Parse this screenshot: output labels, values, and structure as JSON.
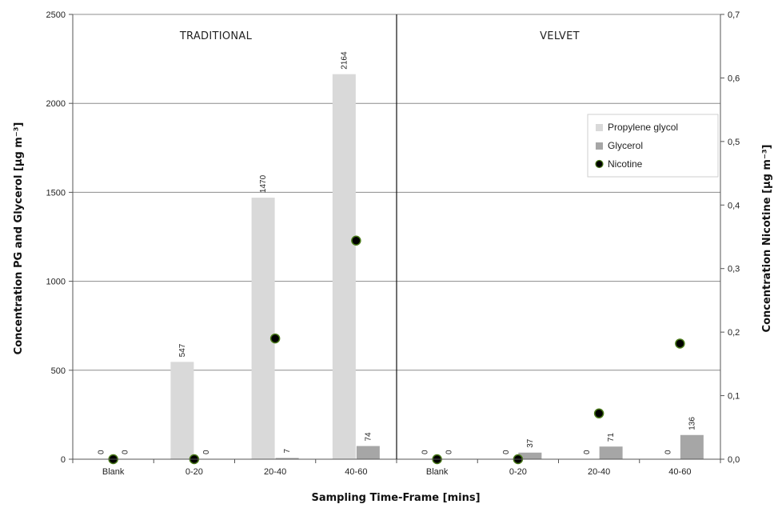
{
  "chart_data": {
    "type": "bar",
    "panels": [
      {
        "title": "TRADITIONAL",
        "categories": [
          "Blank",
          "0-20",
          "20-40",
          "40-60"
        ]
      },
      {
        "title": "VELVET",
        "categories": [
          "Blank",
          "0-20",
          "20-40",
          "40-60"
        ]
      }
    ],
    "categories": [
      "Blank",
      "0-20",
      "20-40",
      "40-60",
      "Blank",
      "0-20",
      "20-40",
      "40-60"
    ],
    "series": [
      {
        "name": "Propylene glycol",
        "kind": "bar",
        "axis": "left",
        "color": "#d9d9d9",
        "values": [
          0,
          547,
          1470,
          2164,
          0,
          0,
          0,
          0
        ],
        "labels": [
          "0",
          "547",
          "1470",
          "2164",
          "0",
          "0",
          "0",
          "0"
        ]
      },
      {
        "name": "Glycerol",
        "kind": "bar",
        "axis": "left",
        "color": "#a6a6a6",
        "values": [
          0,
          0,
          7,
          74,
          0,
          37,
          71,
          136
        ],
        "labels": [
          "0",
          "0",
          "7",
          "74",
          "0",
          "37",
          "71",
          "136"
        ]
      },
      {
        "name": "Nicotine",
        "kind": "scatter",
        "axis": "right",
        "color": "#000000",
        "edge_color": "#4a7a1a",
        "values": [
          0.0,
          0.0,
          0.19,
          0.344,
          0.0,
          0.0,
          0.072,
          0.182
        ]
      }
    ],
    "xlabel": "Sampling Time-Frame [mins]",
    "ylabel": "Concentration PG and Glycerol [µg m⁻³]",
    "y2label": "Concentration Nicotine [µg m⁻³]",
    "ylim": [
      0,
      2500
    ],
    "y2lim": [
      0,
      0.7
    ],
    "yticks": [
      "0",
      "500",
      "1000",
      "1500",
      "2000",
      "2500"
    ],
    "y2ticks": [
      "0,0",
      "0,1",
      "0,2",
      "0,3",
      "0,4",
      "0,5",
      "0,6",
      "0,7"
    ],
    "grid": true,
    "legend": "top-right"
  }
}
